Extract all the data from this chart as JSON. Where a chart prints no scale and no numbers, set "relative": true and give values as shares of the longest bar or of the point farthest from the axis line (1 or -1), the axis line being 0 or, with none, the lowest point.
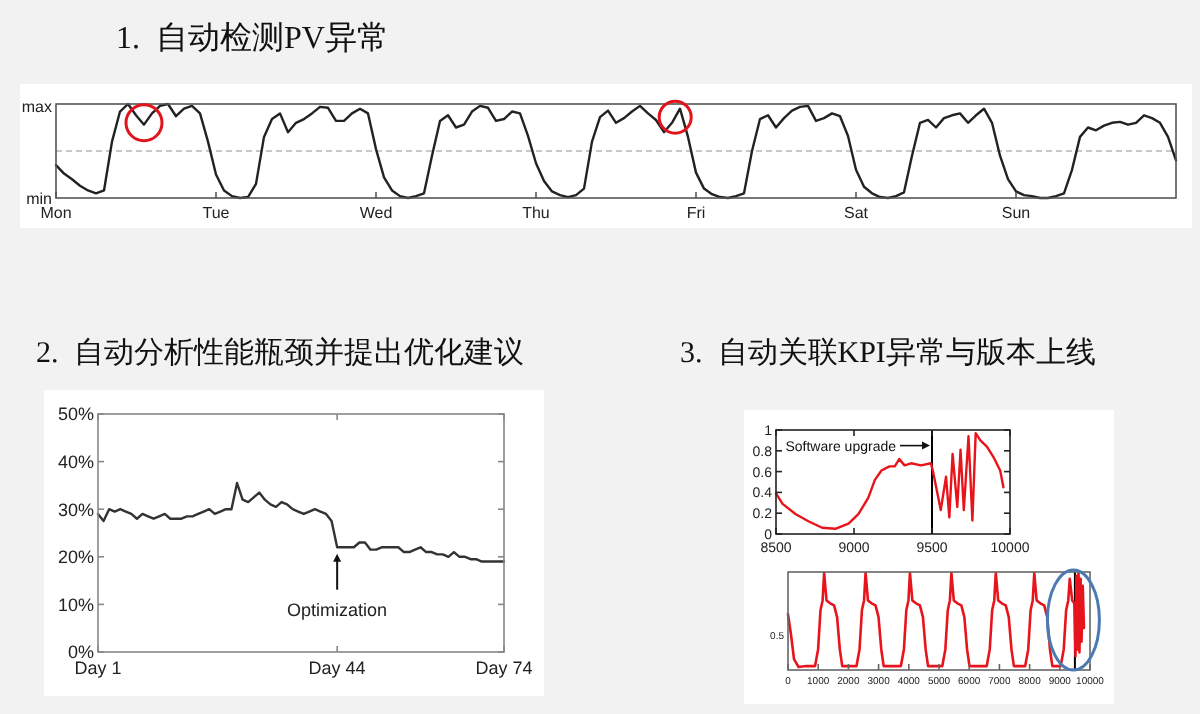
{
  "chart_data": [
    {
      "type": "line",
      "title": "1.  自动检测PV异常",
      "relative": true,
      "annotations": [
        "max",
        "min"
      ],
      "ref_lines": [
        {
          "axis": "y",
          "value": 0.5,
          "color": "#c8c8c8",
          "line_style": "dashed"
        }
      ],
      "color": "#222222",
      "categories": [
        "Mon",
        null,
        null,
        null,
        null,
        null,
        null,
        null,
        null,
        null,
        null,
        null,
        null,
        null,
        null,
        null,
        null,
        null,
        null,
        null,
        "Tue",
        null,
        null,
        null,
        null,
        null,
        null,
        null,
        null,
        null,
        null,
        null,
        null,
        null,
        null,
        null,
        null,
        null,
        null,
        null,
        "Wed",
        null,
        null,
        null,
        null,
        null,
        null,
        null,
        null,
        null,
        null,
        null,
        null,
        null,
        null,
        null,
        null,
        null,
        null,
        null,
        "Thu",
        null,
        null,
        null,
        null,
        null,
        null,
        null,
        null,
        null,
        null,
        null,
        null,
        null,
        null,
        null,
        null,
        null,
        null,
        null,
        "Fri",
        null,
        null,
        null,
        null,
        null,
        null,
        null,
        null,
        null,
        null,
        null,
        null,
        null,
        null,
        null,
        null,
        null,
        null,
        null,
        "Sat",
        null,
        null,
        null,
        null,
        null,
        null,
        null,
        null,
        null,
        null,
        null,
        null,
        null,
        null,
        null,
        null,
        null,
        null,
        null,
        "Sun",
        null,
        null,
        null,
        null,
        null,
        null,
        null,
        null,
        null,
        null,
        null,
        null,
        null,
        null,
        null,
        null,
        null,
        null,
        null,
        null
      ],
      "values": [
        0.35,
        0.26,
        0.2,
        0.13,
        0.08,
        0.05,
        0.08,
        0.6,
        0.92,
        1.0,
        0.88,
        0.78,
        0.9,
        0.98,
        1.0,
        0.87,
        0.95,
        0.98,
        0.9,
        0.6,
        0.25,
        0.08,
        0.02,
        0.0,
        0.01,
        0.15,
        0.65,
        0.84,
        0.9,
        0.7,
        0.8,
        0.84,
        0.9,
        0.97,
        0.96,
        0.82,
        0.82,
        0.9,
        0.95,
        0.9,
        0.52,
        0.22,
        0.08,
        0.02,
        0.0,
        0.02,
        0.05,
        0.45,
        0.82,
        0.88,
        0.75,
        0.78,
        0.92,
        0.98,
        0.96,
        0.82,
        0.84,
        0.92,
        0.9,
        0.66,
        0.37,
        0.18,
        0.07,
        0.03,
        0.01,
        0.03,
        0.1,
        0.6,
        0.86,
        0.93,
        0.8,
        0.85,
        0.92,
        0.98,
        0.9,
        0.83,
        0.7,
        0.8,
        0.95,
        0.65,
        0.27,
        0.1,
        0.04,
        0.01,
        0.0,
        0.02,
        0.05,
        0.5,
        0.84,
        0.88,
        0.75,
        0.85,
        0.93,
        0.97,
        0.98,
        0.82,
        0.85,
        0.9,
        0.87,
        0.66,
        0.3,
        0.12,
        0.05,
        0.01,
        0.0,
        0.02,
        0.06,
        0.45,
        0.8,
        0.83,
        0.75,
        0.85,
        0.88,
        0.9,
        0.8,
        0.88,
        0.95,
        0.8,
        0.45,
        0.2,
        0.07,
        0.03,
        0.02,
        0.0,
        0.0,
        0.02,
        0.05,
        0.3,
        0.65,
        0.75,
        0.72,
        0.77,
        0.8,
        0.81,
        0.78,
        0.8,
        0.88,
        0.85,
        0.8,
        0.65,
        0.4
      ]
    },
    {
      "type": "line",
      "title": "2.  自动分析性能瓶颈并提出优化建议",
      "ylim": [
        0,
        50
      ],
      "yticks": [
        {
          "value": 0,
          "label": "0%"
        },
        {
          "value": 10,
          "label": "10%"
        },
        {
          "value": 20,
          "label": "20%"
        },
        {
          "value": 30,
          "label": "30%"
        },
        {
          "value": 40,
          "label": "40%"
        },
        {
          "value": 50,
          "label": "50%"
        }
      ],
      "color": "#333333",
      "annotations": [
        {
          "text": "Optimization",
          "x": "Day 44",
          "y": 21.5
        }
      ],
      "categories": [
        "Day 1",
        null,
        null,
        null,
        null,
        null,
        null,
        null,
        null,
        null,
        null,
        null,
        null,
        null,
        null,
        null,
        null,
        null,
        null,
        null,
        null,
        null,
        null,
        null,
        null,
        null,
        null,
        null,
        null,
        null,
        null,
        null,
        null,
        null,
        null,
        null,
        null,
        null,
        null,
        null,
        null,
        null,
        null,
        "Day 44",
        null,
        null,
        null,
        null,
        null,
        null,
        null,
        null,
        null,
        null,
        null,
        null,
        null,
        null,
        null,
        null,
        null,
        null,
        null,
        null,
        null,
        null,
        null,
        null,
        null,
        null,
        null,
        null,
        null,
        "Day 74"
      ],
      "values": [
        29,
        27.5,
        30,
        29.5,
        30,
        29.5,
        29,
        28,
        29,
        28.5,
        28,
        28.5,
        29,
        28,
        28,
        28,
        28.5,
        28.5,
        29,
        29.5,
        30,
        29,
        29.5,
        30,
        30,
        35.5,
        32,
        31.5,
        32.5,
        33.5,
        32,
        31,
        30.5,
        31.5,
        31,
        30,
        29.5,
        29,
        29.5,
        30,
        29.5,
        29,
        27.5,
        22,
        22,
        22,
        22,
        23,
        23,
        21.5,
        21.5,
        22,
        22,
        22,
        22,
        21,
        21,
        21.5,
        22,
        21,
        21,
        20.5,
        20.5,
        20,
        21,
        20,
        20,
        19.5,
        19.5,
        19,
        19,
        19,
        19,
        19
      ]
    },
    {
      "type": "line",
      "title": "3.  自动关联KPI异常与版本上线",
      "xlim": [
        8500,
        10000
      ],
      "xticks": [
        8500,
        9000,
        9500,
        10000
      ],
      "ylim": [
        0,
        1
      ],
      "yticks": [
        0,
        0.2,
        0.4,
        0.6,
        0.8,
        1
      ],
      "color": "#e8141c",
      "ref_lines": [
        {
          "axis": "x",
          "value": 9500,
          "color": "#000000"
        }
      ],
      "annotations": [
        {
          "text": "Software upgrade",
          "x": 9500,
          "y": 0.85
        }
      ],
      "x": [
        8500,
        8542,
        8627,
        8711,
        8796,
        8880,
        8965,
        9028,
        9092,
        9134,
        9176,
        9227,
        9261,
        9290,
        9324,
        9366,
        9430,
        9493,
        9505,
        9535,
        9556,
        9590,
        9611,
        9632,
        9662,
        9683,
        9704,
        9734,
        9759,
        9780,
        9810,
        9852,
        9894,
        9937,
        9958
      ],
      "values": [
        0.39,
        0.29,
        0.19,
        0.12,
        0.06,
        0.05,
        0.1,
        0.19,
        0.35,
        0.52,
        0.61,
        0.65,
        0.65,
        0.72,
        0.66,
        0.68,
        0.66,
        0.68,
        0.61,
        0.39,
        0.23,
        0.55,
        0.16,
        0.77,
        0.26,
        0.81,
        0.23,
        0.94,
        0.13,
        0.97,
        0.9,
        0.84,
        0.74,
        0.61,
        0.45
      ]
    },
    {
      "type": "line",
      "relative": true,
      "annotations": [
        "0.5"
      ],
      "xlim": [
        0,
        10000
      ],
      "xticks": [
        0,
        1000,
        2000,
        3000,
        4000,
        5000,
        6000,
        7000,
        8000,
        9000,
        10000
      ],
      "color": "#e8141c",
      "ref_lines": [
        {
          "axis": "x",
          "value": 9500,
          "color": "#000000"
        }
      ],
      "x": [
        0,
        100,
        200,
        350,
        600,
        896,
        996,
        1076,
        1146,
        1196,
        1276,
        1396,
        1526,
        1626,
        1716,
        1796,
        2268,
        2368,
        2448,
        2518,
        2568,
        2648,
        2768,
        2898,
        2998,
        3088,
        3168,
        3738,
        3838,
        3918,
        3988,
        4038,
        4118,
        4238,
        4368,
        4468,
        4558,
        4638,
        5110,
        5210,
        5290,
        5360,
        5410,
        5490,
        5610,
        5740,
        5840,
        5930,
        6010,
        6580,
        6680,
        6760,
        6830,
        6880,
        6960,
        7080,
        7210,
        7310,
        7400,
        7480,
        7854,
        7954,
        8034,
        8104,
        8154,
        8234,
        8354,
        8484,
        8584,
        8674,
        8754,
        9030,
        9130,
        9210,
        9280,
        9330,
        9410,
        9480,
        9520,
        9550,
        9580,
        9620,
        9650,
        9690,
        9720,
        9760,
        9800
      ],
      "values": [
        0.57,
        0.36,
        0.11,
        0.03,
        0.04,
        0.04,
        0.21,
        0.61,
        0.71,
        0.99,
        0.71,
        0.68,
        0.66,
        0.54,
        0.21,
        0.04,
        0.04,
        0.21,
        0.61,
        0.71,
        0.99,
        0.71,
        0.68,
        0.66,
        0.54,
        0.21,
        0.04,
        0.04,
        0.21,
        0.61,
        0.71,
        0.99,
        0.71,
        0.68,
        0.66,
        0.54,
        0.21,
        0.04,
        0.04,
        0.21,
        0.61,
        0.71,
        0.99,
        0.71,
        0.68,
        0.66,
        0.54,
        0.21,
        0.04,
        0.04,
        0.21,
        0.61,
        0.71,
        0.99,
        0.71,
        0.68,
        0.66,
        0.54,
        0.21,
        0.04,
        0.04,
        0.21,
        0.61,
        0.71,
        0.99,
        0.71,
        0.68,
        0.66,
        0.54,
        0.21,
        0.04,
        0.04,
        0.21,
        0.61,
        0.71,
        0.93,
        0.71,
        0.68,
        0.14,
        0.96,
        0.21,
        1,
        0.18,
        0.93,
        0.29,
        0.86,
        0.43
      ]
    }
  ]
}
